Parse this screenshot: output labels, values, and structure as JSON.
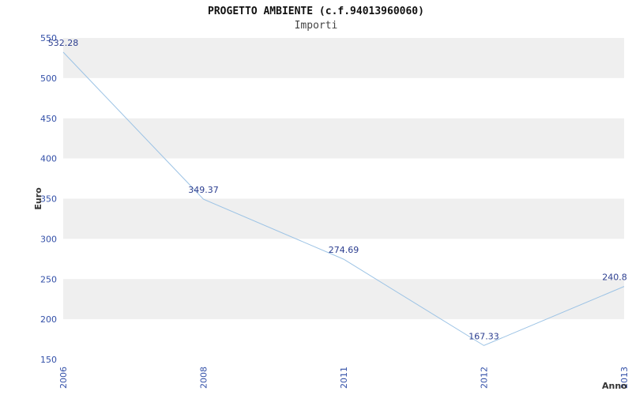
{
  "chart_data": {
    "type": "line",
    "title": "PROGETTO AMBIENTE (c.f.94013960060)",
    "subtitle": "Importi",
    "xlabel": "Anno",
    "ylabel": "Euro",
    "categories": [
      "2006",
      "2008",
      "2011",
      "2012",
      "2013"
    ],
    "values": [
      532.28,
      349.37,
      274.69,
      167.33,
      240.8
    ],
    "point_labels": [
      "532.28",
      "349.37",
      "274.69",
      "167.33",
      "240.8"
    ],
    "ylim": [
      150,
      550
    ],
    "ytick_step": 50,
    "yticks": [
      "150",
      "200",
      "250",
      "300",
      "350",
      "400",
      "450",
      "500",
      "550"
    ],
    "grid": "alternating-bands",
    "legend_position": "none",
    "colors": {
      "line": "#9cc3e5",
      "band_dark": "#efefef",
      "band_light": "#ffffff",
      "tick_label": "#3350a8",
      "point_label": "#2b3d8f",
      "axis_label": "#333333",
      "title": "#111111",
      "subtitle": "#444444"
    }
  }
}
